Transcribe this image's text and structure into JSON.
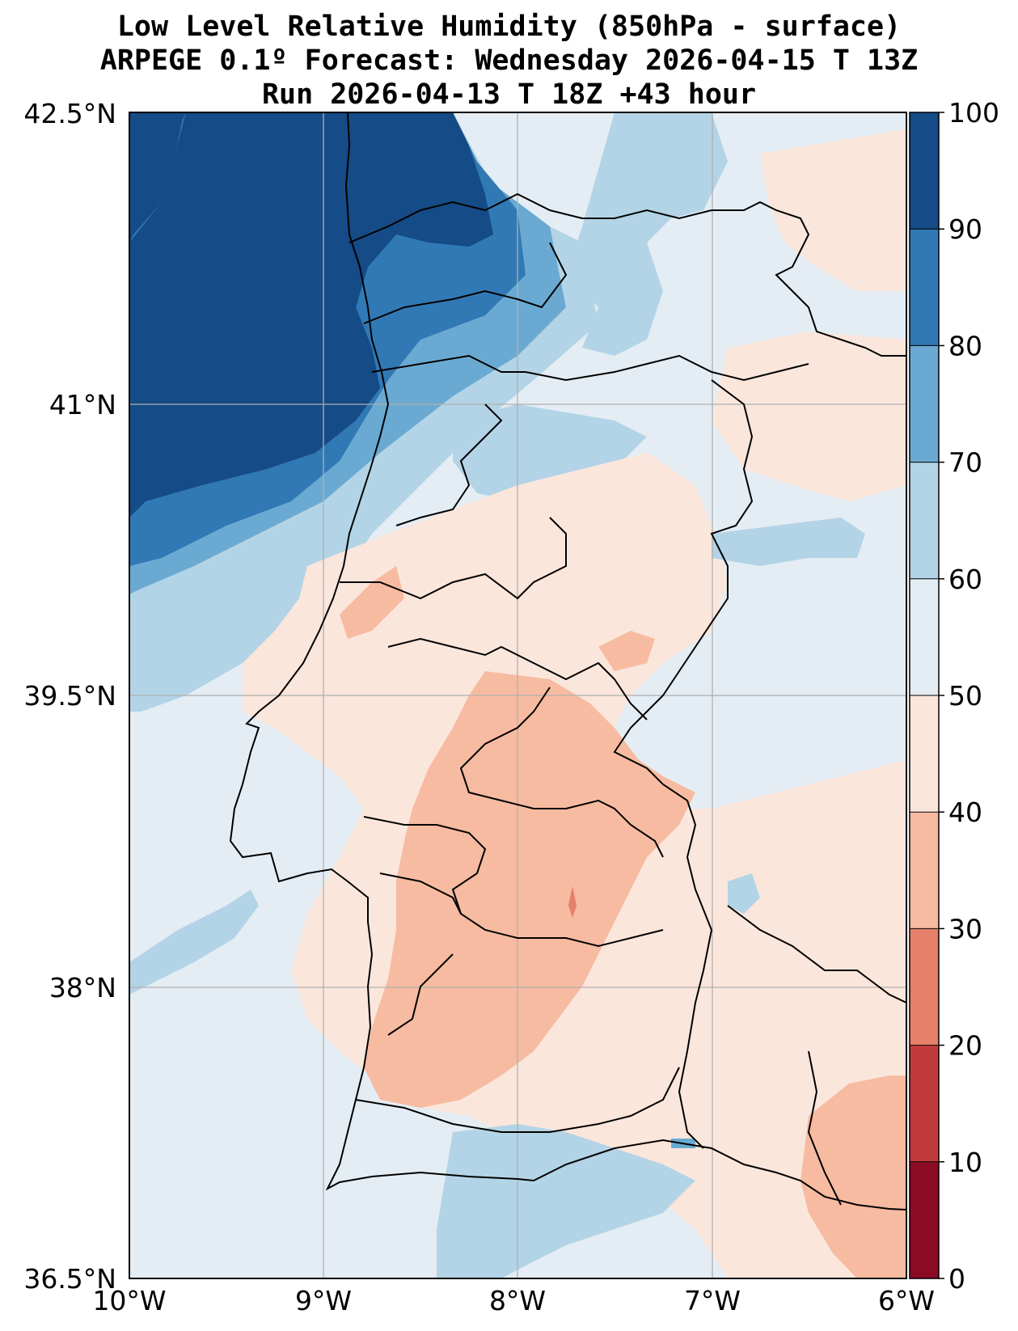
{
  "title_lines": [
    "Low Level Relative Humidity (850hPa - surface)",
    "ARPEGE 0.1º Forecast: Wednesday 2026-04-15 T 13Z",
    "Run 2026-04-13 T 18Z +43 hour"
  ],
  "map": {
    "projection": "PlateCarree",
    "extent": {
      "lon_min": -10,
      "lon_max": -6,
      "lat_min": 36.5,
      "lat_max": 42.5
    },
    "lon_ticks": [
      {
        "value": -10,
        "label": "10°W"
      },
      {
        "value": -9,
        "label": "9°W"
      },
      {
        "value": -8,
        "label": "8°W"
      },
      {
        "value": -7,
        "label": "7°W"
      },
      {
        "value": -6,
        "label": "6°W"
      }
    ],
    "lat_ticks": [
      {
        "value": 42.5,
        "label": "42.5°N"
      },
      {
        "value": 41,
        "label": "41°N"
      },
      {
        "value": 39.5,
        "label": "39.5°N"
      },
      {
        "value": 38,
        "label": "38°N"
      },
      {
        "value": 36.5,
        "label": "36.5°N"
      }
    ],
    "grid": true,
    "features": [
      "coastline",
      "country borders",
      "district borders"
    ]
  },
  "colorbar": {
    "levels": [
      0,
      10,
      20,
      30,
      40,
      50,
      60,
      70,
      80,
      90,
      100
    ],
    "labels": [
      "0",
      "10",
      "20",
      "30",
      "40",
      "50",
      "60",
      "70",
      "80",
      "90",
      "100"
    ],
    "colors": [
      "#8b0a24",
      "#c23b3c",
      "#e6806a",
      "#f7bba1",
      "#fbe6dc",
      "#e4edf4",
      "#b3d4e6",
      "#6aaad2",
      "#3179b5",
      "#154b86"
    ],
    "colormap": "RdBu"
  }
}
